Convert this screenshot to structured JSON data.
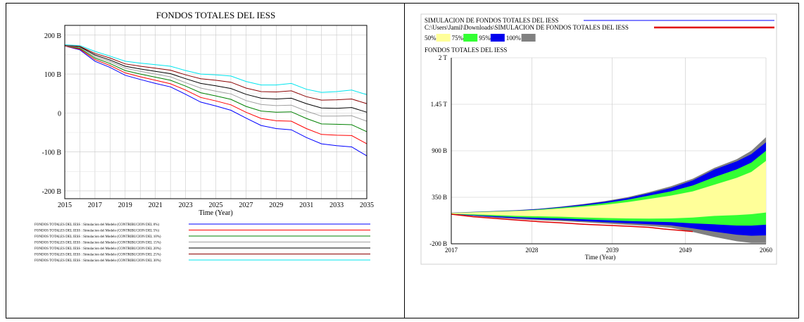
{
  "chart_data": [
    {
      "type": "line",
      "title": "FONDOS TOTALES DEL IESS",
      "xlabel": "Time (Year)",
      "ylabel": "",
      "xlim": [
        2015,
        2035
      ],
      "ylim": [
        -220,
        225
      ],
      "x_ticks": [
        "2015",
        "2017",
        "2019",
        "2021",
        "2023",
        "2025",
        "2027",
        "2029",
        "2031",
        "2033",
        "2035"
      ],
      "y_ticks": [
        {
          "value": 200,
          "label": "200 B"
        },
        {
          "value": 100,
          "label": "100 B"
        },
        {
          "value": 0,
          "label": "0"
        },
        {
          "value": -100,
          "label": "-100 B"
        },
        {
          "value": -200,
          "label": "-200 B"
        }
      ],
      "grid": true,
      "legend_position": "bottom",
      "x": [
        2015,
        2016,
        2017,
        2018,
        2019,
        2020,
        2021,
        2022,
        2023,
        2024,
        2025,
        2026,
        2027,
        2028,
        2029,
        2030,
        2031,
        2032,
        2033,
        2034,
        2035
      ],
      "series": [
        {
          "name": "FONDOS TOTALES DEL IESS : Simulacion del Modelo (CONTRIBUCION DEL 0%)",
          "color": "#0000ff",
          "values": [
            172,
            162,
            133,
            117,
            97,
            86,
            76,
            67,
            48,
            28,
            18,
            7,
            -13,
            -32,
            -40,
            -43,
            -63,
            -79,
            -84,
            -87,
            -110
          ]
        },
        {
          "name": "FONDOS TOTALES DEL IESS : Simulacion del Modelo (CONTRIBUCION DEL 5%)",
          "color": "#ff0000",
          "values": [
            172,
            164,
            137,
            122,
            103,
            93,
            84,
            75,
            59,
            40,
            31,
            21,
            2,
            -14,
            -20,
            -21,
            -40,
            -55,
            -57,
            -58,
            -79
          ]
        },
        {
          "name": "FONDOS TOTALES DEL IESS : Simulacion del Modelo (CONTRIBUCION DEL 10%)",
          "color": "#008000",
          "values": [
            173,
            166,
            141,
            127,
            109,
            100,
            92,
            84,
            69,
            52,
            44,
            35,
            17,
            5,
            2,
            3,
            -14,
            -28,
            -29,
            -30,
            -48
          ]
        },
        {
          "name": "FONDOS TOTALES DEL IESS : Simulacion del Modelo (CONTRIBUCION DEL 15%)",
          "color": "#a0a0a0",
          "values": [
            173,
            168,
            145,
            132,
            115,
            107,
            100,
            93,
            78,
            64,
            56,
            49,
            32,
            22,
            19,
            20,
            5,
            -8,
            -8,
            -7,
            -21
          ]
        },
        {
          "name": "FONDOS TOTALES DEL IESS : Simulacion del Modelo (CONTRIBUCION DEL 20%)",
          "color": "#000000",
          "values": [
            174,
            170,
            149,
            136,
            120,
            113,
            107,
            101,
            88,
            76,
            70,
            63,
            48,
            38,
            36,
            38,
            24,
            13,
            12,
            14,
            2
          ]
        },
        {
          "name": "FONDOS TOTALES DEL IESS : Simulacion del Modelo (CONTRIBUCION DEL 25%)",
          "color": "#8b0000",
          "values": [
            174,
            171,
            153,
            141,
            126,
            120,
            115,
            110,
            98,
            88,
            84,
            79,
            64,
            55,
            54,
            57,
            42,
            33,
            34,
            36,
            24
          ]
        },
        {
          "name": "FONDOS TOTALES DEL IESS : Simulacion del Modelo (CONTRIBUCION DEL 30%)",
          "color": "#00e5ee",
          "values": [
            175,
            173,
            158,
            146,
            133,
            128,
            124,
            120,
            109,
            100,
            98,
            95,
            81,
            72,
            72,
            76,
            61,
            53,
            55,
            59,
            47
          ]
        }
      ]
    },
    {
      "type": "area",
      "legend_lines": [
        {
          "label": "SIMULACION DE FONDOS TOTALES DEL IESS",
          "color": "#0000ff"
        },
        {
          "label": "C:\\Users\\Jamil\\Downloads\\SIMULACION DE FONDOS TOTALES DEL IESS",
          "color": "#e00000"
        }
      ],
      "legend_bands": [
        {
          "label": "50%",
          "color": "#ffff99"
        },
        {
          "label": "75%",
          "color": "#33ff33"
        },
        {
          "label": "95%",
          "color": "#0000ee"
        },
        {
          "label": "100%",
          "color": "#808080"
        }
      ],
      "title": "FONDOS TOTALES DEL IESS",
      "xlabel": "Time (Year)",
      "xlim": [
        2017,
        2060
      ],
      "ylim": [
        -200,
        2000
      ],
      "x_ticks": [
        "2017",
        "2028",
        "2039",
        "2049",
        "2060"
      ],
      "y_ticks": [
        {
          "value": 2000,
          "label": "2 T"
        },
        {
          "value": 1450,
          "label": "1.45 T"
        },
        {
          "value": 900,
          "label": "900 B"
        },
        {
          "value": 350,
          "label": "350 B"
        },
        {
          "value": -200,
          "label": "-200 B"
        }
      ],
      "grid": true,
      "legend_position": "top-left",
      "x": [
        2017,
        2020,
        2023,
        2026,
        2029,
        2032,
        2035,
        2038,
        2041,
        2044,
        2047,
        2050,
        2053,
        2056,
        2058,
        2060
      ],
      "bands": {
        "p100": {
          "upper": [
            168,
            178,
            188,
            198,
            215,
            240,
            270,
            305,
            350,
            410,
            480,
            570,
            700,
            800,
            900,
            1060
          ],
          "lower": [
            150,
            128,
            108,
            92,
            78,
            68,
            55,
            40,
            25,
            10,
            -10,
            -60,
            -120,
            -170,
            -190,
            -190
          ]
        },
        "p95": {
          "upper": [
            167,
            176,
            186,
            196,
            212,
            236,
            264,
            298,
            340,
            398,
            460,
            550,
            680,
            775,
            860,
            1000
          ]
        },
        "p75": {
          "upper": [
            166,
            174,
            183,
            192,
            206,
            228,
            252,
            282,
            320,
            370,
            420,
            490,
            590,
            680,
            760,
            900
          ]
        },
        "p50": {
          "upper": [
            165,
            172,
            180,
            188,
            200,
            218,
            238,
            262,
            292,
            330,
            370,
            420,
            500,
            580,
            650,
            780
          ],
          "lower": [
            155,
            148,
            140,
            130,
            125,
            120,
            112,
            105,
            100,
            98,
            100,
            110,
            130,
            140,
            150,
            170
          ]
        }
      },
      "lines": [
        {
          "name": "C:\\Users\\Jamil\\Downloads\\SIMULACION DE FONDOS TOTALES DEL IESS",
          "color": "#e00000",
          "x": [
            2017,
            2020,
            2023,
            2026,
            2029,
            2032,
            2035,
            2038,
            2041,
            2044,
            2046,
            2048,
            2050
          ],
          "values": [
            150,
            120,
            100,
            80,
            62,
            48,
            32,
            20,
            8,
            -5,
            -25,
            -40,
            -55
          ]
        }
      ]
    }
  ]
}
